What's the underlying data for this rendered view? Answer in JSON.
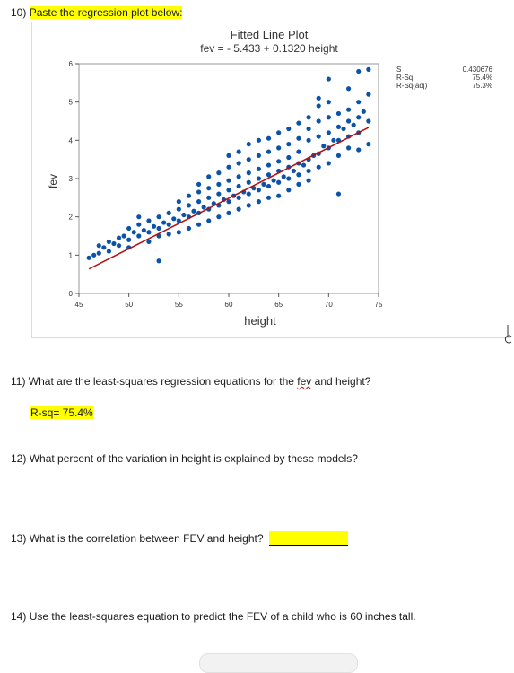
{
  "q10": {
    "number": "10)",
    "text": "Paste the regression plot below:"
  },
  "q11": {
    "number": "11)",
    "before": "What are the least-squares regression equations for the ",
    "wavy": "fev",
    "after": " and height?"
  },
  "answer11": "R-sq= 75.4%",
  "q12": {
    "number": "12)",
    "text": "What percent of the variation in height is explained by these models?"
  },
  "q13": {
    "number": "13)",
    "text": "What is the correlation between FEV and height?"
  },
  "q14": {
    "number": "14)",
    "text": "Use the least-squares equation to predict the FEV of a child who is 60 inches tall."
  },
  "colors": {
    "highlight": "#ffff00",
    "points": "#0a53a8",
    "fit_line": "#b01010"
  },
  "chart_data": {
    "type": "scatter",
    "title": "Fitted Line Plot",
    "subtitle": "fev = - 5.433 + 0.1320 height",
    "xlabel": "height",
    "ylabel": "fev",
    "xlim": [
      45,
      75
    ],
    "ylim": [
      0,
      6
    ],
    "xticks": [
      "45",
      "50",
      "55",
      "60",
      "65",
      "70",
      "75"
    ],
    "yticks": [
      "0",
      "1",
      "2",
      "3",
      "4",
      "5",
      "6"
    ],
    "fit": {
      "intercept": -5.433,
      "slope": 0.132,
      "x_range": [
        46,
        74
      ]
    },
    "stats": [
      {
        "label": "S",
        "value": "0.430676"
      },
      {
        "label": "R-Sq",
        "value": "75.4%"
      },
      {
        "label": "R-Sq(adj)",
        "value": "75.3%"
      }
    ],
    "points": [
      [
        46,
        0.93
      ],
      [
        46.5,
        1.0
      ],
      [
        47,
        1.05
      ],
      [
        47,
        1.25
      ],
      [
        47.5,
        1.2
      ],
      [
        48,
        1.1
      ],
      [
        48,
        1.35
      ],
      [
        48.5,
        1.3
      ],
      [
        49,
        1.25
      ],
      [
        49,
        1.45
      ],
      [
        49.5,
        1.5
      ],
      [
        50,
        1.4
      ],
      [
        50,
        1.7
      ],
      [
        50,
        1.2
      ],
      [
        50.5,
        1.6
      ],
      [
        51,
        1.5
      ],
      [
        51,
        1.8
      ],
      [
        51,
        2.0
      ],
      [
        51.5,
        1.65
      ],
      [
        52,
        1.6
      ],
      [
        52,
        1.9
      ],
      [
        52,
        1.35
      ],
      [
        52.5,
        1.75
      ],
      [
        53,
        1.7
      ],
      [
        53,
        2.0
      ],
      [
        53,
        1.5
      ],
      [
        53,
        0.85
      ],
      [
        53.5,
        1.85
      ],
      [
        54,
        1.8
      ],
      [
        54,
        2.1
      ],
      [
        54,
        1.55
      ],
      [
        54.5,
        1.95
      ],
      [
        55,
        1.9
      ],
      [
        55,
        2.2
      ],
      [
        55,
        1.6
      ],
      [
        55,
        2.4
      ],
      [
        55.5,
        2.05
      ],
      [
        56,
        2.0
      ],
      [
        56,
        2.3
      ],
      [
        56,
        1.7
      ],
      [
        56,
        2.55
      ],
      [
        56.5,
        2.15
      ],
      [
        57,
        2.1
      ],
      [
        57,
        2.4
      ],
      [
        57,
        1.8
      ],
      [
        57,
        2.65
      ],
      [
        57,
        2.85
      ],
      [
        57.5,
        2.25
      ],
      [
        58,
        2.2
      ],
      [
        58,
        2.5
      ],
      [
        58,
        1.9
      ],
      [
        58,
        2.75
      ],
      [
        58,
        3.05
      ],
      [
        58.5,
        2.35
      ],
      [
        59,
        2.3
      ],
      [
        59,
        2.6
      ],
      [
        59,
        2.0
      ],
      [
        59,
        2.85
      ],
      [
        59,
        3.15
      ],
      [
        59.5,
        2.45
      ],
      [
        60,
        2.4
      ],
      [
        60,
        2.7
      ],
      [
        60,
        2.1
      ],
      [
        60,
        2.95
      ],
      [
        60,
        3.3
      ],
      [
        60,
        3.6
      ],
      [
        60.5,
        2.55
      ],
      [
        61,
        2.5
      ],
      [
        61,
        2.8
      ],
      [
        61,
        2.2
      ],
      [
        61,
        3.05
      ],
      [
        61,
        3.4
      ],
      [
        61,
        3.7
      ],
      [
        61.5,
        2.65
      ],
      [
        62,
        2.6
      ],
      [
        62,
        2.9
      ],
      [
        62,
        2.3
      ],
      [
        62,
        3.15
      ],
      [
        62,
        3.5
      ],
      [
        62,
        3.9
      ],
      [
        62.5,
        2.75
      ],
      [
        63,
        2.7
      ],
      [
        63,
        3.0
      ],
      [
        63,
        2.4
      ],
      [
        63,
        3.25
      ],
      [
        63,
        3.6
      ],
      [
        63,
        4.0
      ],
      [
        63.5,
        2.85
      ],
      [
        64,
        2.8
      ],
      [
        64,
        3.1
      ],
      [
        64,
        2.5
      ],
      [
        64,
        3.35
      ],
      [
        64,
        3.7
      ],
      [
        64,
        4.05
      ],
      [
        64.5,
        2.95
      ],
      [
        65,
        2.9
      ],
      [
        65,
        3.2
      ],
      [
        65,
        2.55
      ],
      [
        65,
        3.45
      ],
      [
        65,
        3.8
      ],
      [
        65,
        4.2
      ],
      [
        65.5,
        3.05
      ],
      [
        66,
        3.0
      ],
      [
        66,
        3.3
      ],
      [
        66,
        2.7
      ],
      [
        66,
        3.55
      ],
      [
        66,
        3.9
      ],
      [
        66,
        4.3
      ],
      [
        66.5,
        3.2
      ],
      [
        67,
        3.1
      ],
      [
        67,
        3.4
      ],
      [
        67,
        2.85
      ],
      [
        67,
        3.7
      ],
      [
        67,
        4.05
      ],
      [
        67,
        4.45
      ],
      [
        67.5,
        3.35
      ],
      [
        68,
        3.2
      ],
      [
        68,
        3.5
      ],
      [
        68,
        4.0
      ],
      [
        68,
        4.3
      ],
      [
        68,
        4.6
      ],
      [
        68,
        2.95
      ],
      [
        68.5,
        3.6
      ],
      [
        69,
        3.3
      ],
      [
        69,
        3.65
      ],
      [
        69,
        4.1
      ],
      [
        69,
        4.5
      ],
      [
        69,
        4.9
      ],
      [
        69,
        5.1
      ],
      [
        69.5,
        3.85
      ],
      [
        70,
        3.4
      ],
      [
        70,
        3.8
      ],
      [
        70,
        4.2
      ],
      [
        70,
        4.6
      ],
      [
        70,
        5.0
      ],
      [
        70,
        5.6
      ],
      [
        70.5,
        4.0
      ],
      [
        71,
        3.6
      ],
      [
        71,
        4.0
      ],
      [
        71,
        4.35
      ],
      [
        71,
        4.7
      ],
      [
        71,
        2.6
      ],
      [
        71.5,
        4.3
      ],
      [
        72,
        3.8
      ],
      [
        72,
        4.1
      ],
      [
        72,
        4.5
      ],
      [
        72,
        4.8
      ],
      [
        72,
        5.35
      ],
      [
        72.5,
        4.4
      ],
      [
        73,
        4.2
      ],
      [
        73,
        4.6
      ],
      [
        73,
        5.0
      ],
      [
        73,
        5.8
      ],
      [
        73,
        3.75
      ],
      [
        73.5,
        4.75
      ],
      [
        74,
        4.5
      ],
      [
        74,
        5.2
      ],
      [
        74,
        5.85
      ],
      [
        74,
        3.9
      ]
    ]
  }
}
